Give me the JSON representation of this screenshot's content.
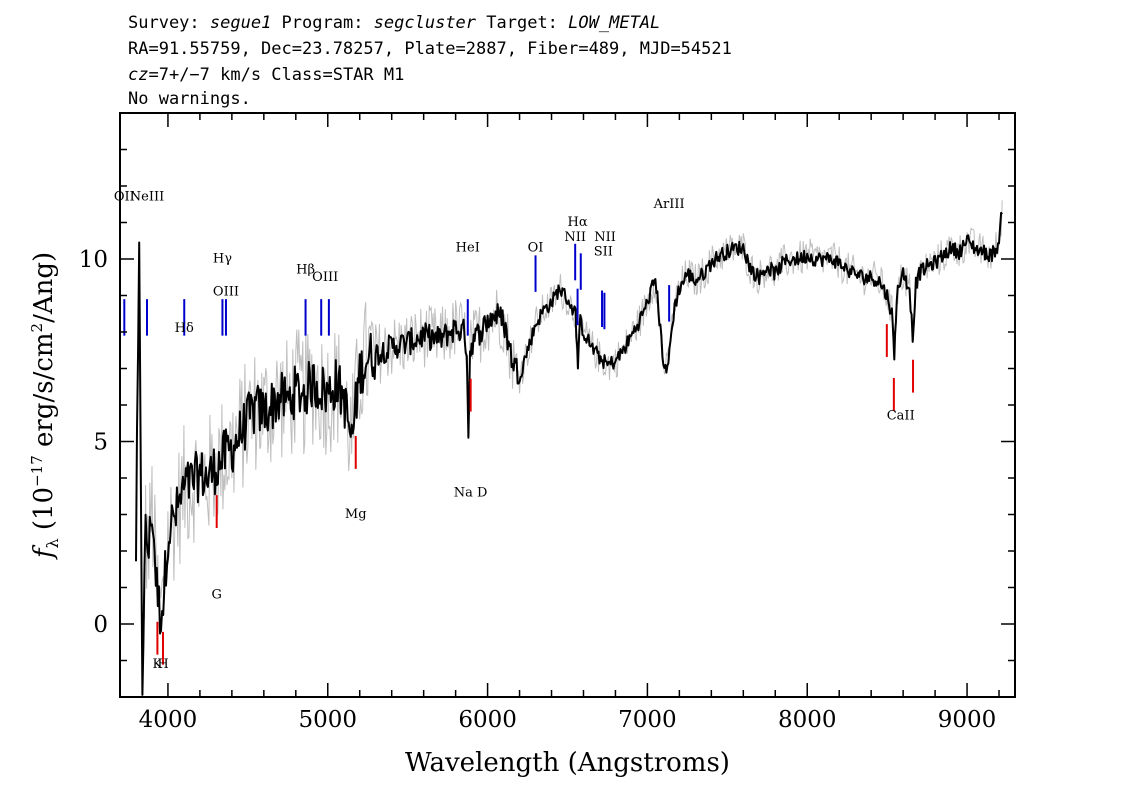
{
  "header": {
    "line1": [
      {
        "t": "Survey: ",
        "i": false
      },
      {
        "t": "segue1",
        "i": true
      },
      {
        "t": " Program: ",
        "i": false
      },
      {
        "t": "segcluster",
        "i": true
      },
      {
        "t": " Target: ",
        "i": false
      },
      {
        "t": "LOW_METAL",
        "i": true
      }
    ],
    "line2": "RA=91.55759, Dec=23.78257, Plate=2887, Fiber=489, MJD=54521",
    "line3": [
      {
        "t": "cz",
        "i": true
      },
      {
        "t": "=7+/−7 km/s Class=STAR M1",
        "i": false
      }
    ],
    "line4": "No warnings."
  },
  "chart_data": {
    "type": "line",
    "xlabel": "Wavelength (Angstroms)",
    "ylabel_parts": {
      "f": "f",
      "lambda": "λ",
      "pre": " (10",
      "exp": "−17",
      "mid": " erg/s/cm",
      "sq": "2",
      "post": "/Ang)"
    },
    "xlim": [
      3700,
      9300
    ],
    "ylim": [
      -2,
      14
    ],
    "x_ticks": [
      4000,
      5000,
      6000,
      7000,
      8000,
      9000
    ],
    "y_ticks": [
      0,
      5,
      10
    ],
    "colors": {
      "flux": "#000000",
      "error_band": "#bebebe",
      "emission": "#0000cd",
      "absorption": "#e00000"
    },
    "series": [
      {
        "x": [
          3800,
          3820,
          3840,
          3860,
          3880,
          3900,
          3930,
          3950,
          3970,
          4000,
          4050,
          4100,
          4150,
          4200,
          4250,
          4300,
          4350,
          4400,
          4450,
          4500,
          4550,
          4600,
          4650,
          4700,
          4750,
          4800,
          4850,
          4900,
          4950,
          5000,
          5050,
          5100,
          5150,
          5200,
          5250,
          5300,
          5400,
          5500,
          5600,
          5700,
          5800,
          5850,
          5870,
          5880,
          5890,
          5900,
          5950,
          6000,
          6050,
          6100,
          6150,
          6200,
          6250,
          6300,
          6350,
          6400,
          6450,
          6500,
          6550,
          6565,
          6580,
          6600,
          6650,
          6700,
          6750,
          6800,
          6850,
          6900,
          6950,
          7000,
          7050,
          7100,
          7125,
          7150,
          7170,
          7200,
          7250,
          7300,
          7350,
          7400,
          7450,
          7500,
          7550,
          7600,
          7650,
          7700,
          7750,
          7800,
          7850,
          7900,
          7950,
          8000,
          8050,
          8100,
          8150,
          8200,
          8250,
          8300,
          8350,
          8400,
          8450,
          8500,
          8530,
          8545,
          8560,
          8580,
          8600,
          8640,
          8660,
          8680,
          8700,
          8750,
          8800,
          8850,
          8900,
          8950,
          9000,
          9050,
          9100,
          9150,
          9200,
          9220
        ],
        "y": [
          2,
          9.9,
          -1.5,
          2.5,
          2,
          3.2,
          1.0,
          0.3,
          0.6,
          2.5,
          3.0,
          3.7,
          3.9,
          4.1,
          4.0,
          4.3,
          4.6,
          4.8,
          5.2,
          5.6,
          5.9,
          5.8,
          6.0,
          6.2,
          6.1,
          6.4,
          6.3,
          6.6,
          6.5,
          6.3,
          6.6,
          6.2,
          5.0,
          6.9,
          7.3,
          7.4,
          7.6,
          7.7,
          7.9,
          7.8,
          8.1,
          8.0,
          7.6,
          5.2,
          7.4,
          7.7,
          8.0,
          8.3,
          8.5,
          8.3,
          7.3,
          6.8,
          7.5,
          8.2,
          8.6,
          8.8,
          9.2,
          8.9,
          8.5,
          7.1,
          8.3,
          8.0,
          7.6,
          7.3,
          7.1,
          7.2,
          7.5,
          7.9,
          8.3,
          8.8,
          9.5,
          7.2,
          6.9,
          8.0,
          8.7,
          9.2,
          9.6,
          9.4,
          9.6,
          9.9,
          10.1,
          10.2,
          10.3,
          10.3,
          9.7,
          9.5,
          9.8,
          9.6,
          9.9,
          10.0,
          10.0,
          10.1,
          10.0,
          10.0,
          10.0,
          9.9,
          9.7,
          9.6,
          9.5,
          9.5,
          9.4,
          9.0,
          8.5,
          7.3,
          9.0,
          9.4,
          9.6,
          9.2,
          7.9,
          9.3,
          9.6,
          9.8,
          9.9,
          10.1,
          10.3,
          10.2,
          10.5,
          10.3,
          10.2,
          10.1,
          10.4,
          11.4
        ]
      }
    ],
    "emission_lines": [
      {
        "name": "OII",
        "x": 3727
      },
      {
        "name": "NeIII",
        "x": 3869
      },
      {
        "name": "Hδ",
        "x": 4102
      },
      {
        "name": "Hγ",
        "x": 4341
      },
      {
        "name": "OIII",
        "x": 4363
      },
      {
        "name": "Hβ",
        "x": 4861
      },
      {
        "name": "OIII",
        "x": 4959
      },
      {
        "name": "OIII",
        "x": 5007
      },
      {
        "name": "HeI",
        "x": 5876
      },
      {
        "name": "OI",
        "x": 6300
      },
      {
        "name": "NII",
        "x": 6548
      },
      {
        "name": "Hα",
        "x": 6563
      },
      {
        "name": "NII",
        "x": 6583
      },
      {
        "name": "SII",
        "x": 6716
      },
      {
        "name": "SII",
        "x": 6731
      },
      {
        "name": "ArIII",
        "x": 7136
      }
    ],
    "absorption_lines": [
      {
        "name": "K",
        "x": 3934
      },
      {
        "name": "H",
        "x": 3969
      },
      {
        "name": "G",
        "x": 4305
      },
      {
        "name": "Mg",
        "x": 5175
      },
      {
        "name": "Na D",
        "x": 5894
      },
      {
        "name": "CaII",
        "x": 8498
      },
      {
        "name": "CaII",
        "x": 8542
      },
      {
        "name": "CaII",
        "x": 8662
      }
    ],
    "emission_labels": [
      {
        "text": "OII",
        "x": 3727,
        "y": 11.6
      },
      {
        "text": "NeIII",
        "x": 3869,
        "y": 11.6
      },
      {
        "text": "Hδ",
        "x": 4102,
        "y": 8.0
      },
      {
        "text": "Hγ",
        "x": 4341,
        "y": 9.9
      },
      {
        "text": "OIII",
        "x": 4363,
        "y": 9.0
      },
      {
        "text": "Hβ",
        "x": 4861,
        "y": 9.6
      },
      {
        "text": "OIII",
        "x": 4984,
        "y": 9.4
      },
      {
        "text": "HeI",
        "x": 5876,
        "y": 10.2
      },
      {
        "text": "OI",
        "x": 6300,
        "y": 10.2
      },
      {
        "text": "NII",
        "x": 6548,
        "y": 10.5
      },
      {
        "text": "Hα",
        "x": 6563,
        "y": 10.9
      },
      {
        "text": "NII",
        "x": 6735,
        "y": 10.5
      },
      {
        "text": "SII",
        "x": 6724,
        "y": 10.1
      },
      {
        "text": "ArIII",
        "x": 7136,
        "y": 11.4
      }
    ],
    "absorption_labels": [
      {
        "text": "K",
        "x": 3934,
        "y": -1.2
      },
      {
        "text": "H",
        "x": 3969,
        "y": -1.2
      },
      {
        "text": "G",
        "x": 4305,
        "y": 0.7
      },
      {
        "text": "Mg",
        "x": 5175,
        "y": 2.9
      },
      {
        "text": "Na D",
        "x": 5894,
        "y": 3.5
      },
      {
        "text": "CaII",
        "x": 8585,
        "y": 5.6
      }
    ]
  }
}
